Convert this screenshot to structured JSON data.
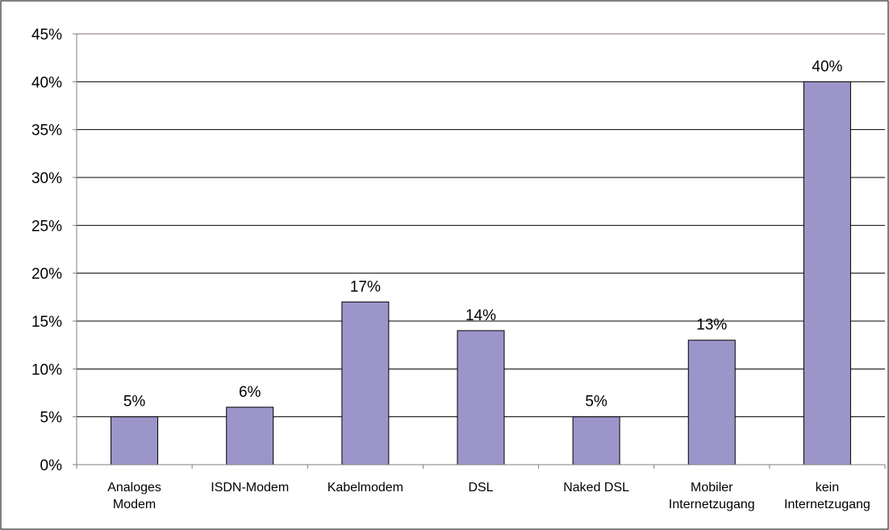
{
  "chart_data": {
    "type": "bar",
    "title": "",
    "xlabel": "",
    "ylabel": "",
    "categories": [
      [
        "Analoges",
        "Modem"
      ],
      [
        "ISDN-Modem"
      ],
      [
        "Kabelmodem"
      ],
      [
        "DSL"
      ],
      [
        "Naked DSL"
      ],
      [
        "Mobiler",
        "Internetzugang"
      ],
      [
        "kein",
        "Internetzugang"
      ]
    ],
    "values": [
      5,
      6,
      17,
      14,
      5,
      13,
      40
    ],
    "data_labels": [
      "5%",
      "6%",
      "17%",
      "14%",
      "5%",
      "13%",
      "40%"
    ],
    "ylim": [
      0,
      45
    ],
    "y_ticks": [
      0,
      5,
      10,
      15,
      20,
      25,
      30,
      35,
      40,
      45
    ],
    "y_tick_labels": [
      "0%",
      "5%",
      "10%",
      "15%",
      "20%",
      "25%",
      "30%",
      "35%",
      "40%",
      "45%"
    ],
    "grid": true,
    "legend": "none",
    "colors": {
      "bar_fill": "#9c95c9",
      "bar_stroke": "#000000",
      "grid": "#000000",
      "top_grid": "#7f6a75",
      "axis": "#7f7f7f",
      "frame": "#000000"
    }
  }
}
